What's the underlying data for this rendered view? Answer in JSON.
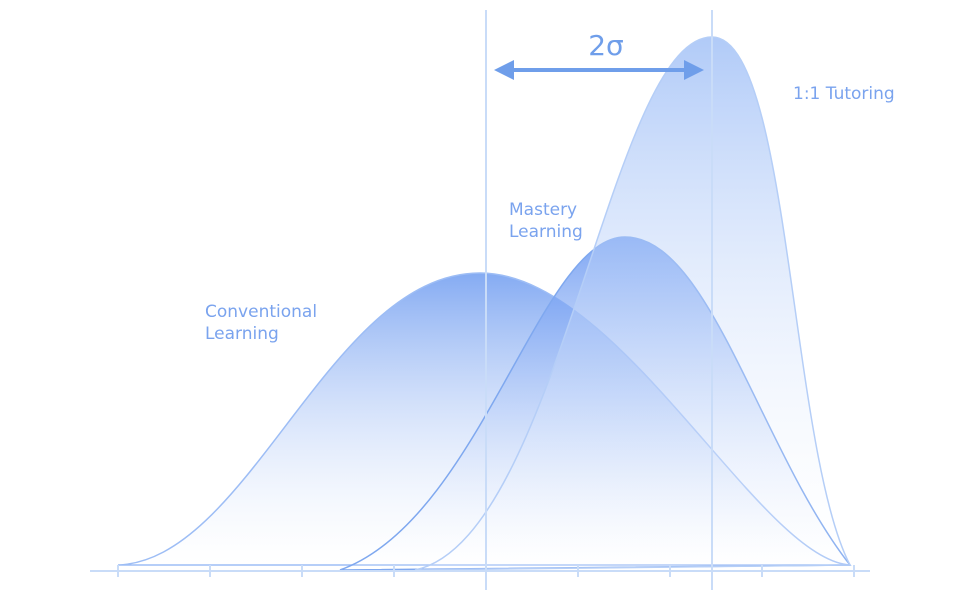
{
  "arrow_label": "2σ",
  "labels": {
    "tutoring": [
      "1:1 Tutoring"
    ],
    "mastery": [
      "Mastery",
      "Learning"
    ],
    "conventional": [
      "Conventional",
      "Learning"
    ]
  }
}
